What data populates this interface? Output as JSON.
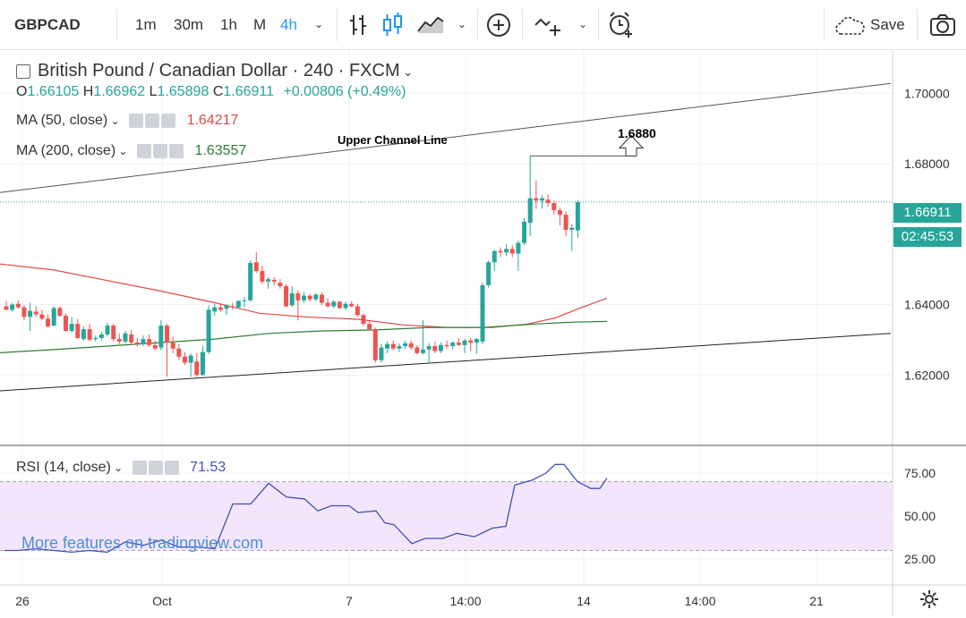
{
  "toolbar": {
    "symbol": "GBPCAD",
    "intervals": [
      "1m",
      "30m",
      "1h",
      "M",
      "4h"
    ],
    "active_interval": "4h",
    "save_label": "Save"
  },
  "legend": {
    "title": "British Pound / Canadian Dollar · 240 · FXCM",
    "ohlc": {
      "o_label": "O",
      "o": "1.66105",
      "h_label": "H",
      "h": "1.66962",
      "l_label": "L",
      "l": "1.65898",
      "c_label": "C",
      "c": "1.66911",
      "change": "+0.00806 (+0.49%)"
    },
    "ma50": {
      "label": "MA (50, close)",
      "value": "1.64217",
      "color": "#e04848"
    },
    "ma200": {
      "label": "MA (200, close)",
      "value": "1.63557",
      "color": "#2e7d32"
    },
    "rsi": {
      "label": "RSI (14, close)",
      "value": "71.53",
      "color": "#3f51b5"
    }
  },
  "annotations": {
    "channel_label": "Upper Channel Line",
    "target_label": "1.6880"
  },
  "price_tags": {
    "last_price": "1.66911",
    "countdown": "02:45:53"
  },
  "watermark": "More features on tradingview.com",
  "colors": {
    "up": "#26a69a",
    "down": "#ef5350",
    "accent": "#2196f3"
  },
  "chart_data": {
    "type": "candlestick",
    "symbol": "GBPCAD",
    "interval": "240",
    "y_ticks": [
      "1.70000",
      "1.68000",
      "1.64000",
      "1.62000"
    ],
    "ylim": [
      1.6,
      1.712
    ],
    "x_ticks": [
      "26",
      "Oct",
      "7",
      "14:00",
      "14",
      "14:00",
      "21"
    ],
    "candles": [
      [
        1.6395,
        1.641,
        1.6385,
        1.6385
      ],
      [
        1.6385,
        1.6405,
        1.638,
        1.64
      ],
      [
        1.6402,
        1.6412,
        1.6388,
        1.6392
      ],
      [
        1.6392,
        1.6398,
        1.6355,
        1.6365
      ],
      [
        1.6365,
        1.6405,
        1.6325,
        1.6382
      ],
      [
        1.638,
        1.6395,
        1.6365,
        1.6372
      ],
      [
        1.6372,
        1.6385,
        1.6355,
        1.636
      ],
      [
        1.636,
        1.6372,
        1.6335,
        1.6338
      ],
      [
        1.634,
        1.6395,
        1.6338,
        1.639
      ],
      [
        1.639,
        1.6395,
        1.6365,
        1.6368
      ],
      [
        1.6368,
        1.6375,
        1.6322,
        1.6325
      ],
      [
        1.6325,
        1.6365,
        1.632,
        1.6345
      ],
      [
        1.6345,
        1.6358,
        1.6302,
        1.6305
      ],
      [
        1.6302,
        1.6338,
        1.6298,
        1.633
      ],
      [
        1.633,
        1.6345,
        1.6296,
        1.63
      ],
      [
        1.6302,
        1.6312,
        1.6295,
        1.6305
      ],
      [
        1.6305,
        1.6322,
        1.6298,
        1.6315
      ],
      [
        1.6315,
        1.6348,
        1.631,
        1.634
      ],
      [
        1.634,
        1.6345,
        1.6295,
        1.6302
      ],
      [
        1.6302,
        1.6318,
        1.6288,
        1.6295
      ],
      [
        1.6295,
        1.6325,
        1.629,
        1.6318
      ],
      [
        1.6315,
        1.6328,
        1.6285,
        1.6292
      ],
      [
        1.6292,
        1.6305,
        1.628,
        1.6288
      ],
      [
        1.6288,
        1.6312,
        1.6282,
        1.6302
      ],
      [
        1.6302,
        1.6315,
        1.628,
        1.6285
      ],
      [
        1.6285,
        1.6298,
        1.627,
        1.6275
      ],
      [
        1.6278,
        1.6355,
        1.627,
        1.634
      ],
      [
        1.634,
        1.6345,
        1.6195,
        1.6292
      ],
      [
        1.6292,
        1.6308,
        1.6262,
        1.6275
      ],
      [
        1.6275,
        1.6288,
        1.6242,
        1.6252
      ],
      [
        1.6252,
        1.6265,
        1.6228,
        1.6235
      ],
      [
        1.6235,
        1.6262,
        1.6195,
        1.6255
      ],
      [
        1.6238,
        1.6262,
        1.6195,
        1.62
      ],
      [
        1.62,
        1.6282,
        1.6198,
        1.6265
      ],
      [
        1.6265,
        1.6398,
        1.626,
        1.6385
      ],
      [
        1.638,
        1.6402,
        1.6368,
        1.6392
      ],
      [
        1.6392,
        1.64,
        1.6378,
        1.6385
      ],
      [
        1.6388,
        1.64,
        1.637,
        1.6398
      ],
      [
        1.6395,
        1.6405,
        1.6385,
        1.6392
      ],
      [
        1.6392,
        1.6412,
        1.6388,
        1.641
      ],
      [
        1.641,
        1.6422,
        1.6392,
        1.6412
      ],
      [
        1.6412,
        1.6525,
        1.6408,
        1.6518
      ],
      [
        1.652,
        1.6548,
        1.649,
        1.6495
      ],
      [
        1.6495,
        1.651,
        1.6458,
        1.6465
      ],
      [
        1.6465,
        1.6478,
        1.6445,
        1.6472
      ],
      [
        1.647,
        1.6478,
        1.6455,
        1.6465
      ],
      [
        1.6462,
        1.6472,
        1.6445,
        1.6452
      ],
      [
        1.6452,
        1.6458,
        1.6392,
        1.6395
      ],
      [
        1.6398,
        1.6452,
        1.6392,
        1.6432
      ],
      [
        1.6432,
        1.644,
        1.6355,
        1.6412
      ],
      [
        1.6412,
        1.6435,
        1.6405,
        1.6425
      ],
      [
        1.6425,
        1.643,
        1.6408,
        1.6415
      ],
      [
        1.6415,
        1.6432,
        1.6408,
        1.6428
      ],
      [
        1.6428,
        1.6435,
        1.6398,
        1.6405
      ],
      [
        1.6405,
        1.6418,
        1.6392,
        1.6395
      ],
      [
        1.6395,
        1.6412,
        1.639,
        1.6408
      ],
      [
        1.6408,
        1.641,
        1.6388,
        1.639
      ],
      [
        1.639,
        1.6408,
        1.6385,
        1.6402
      ],
      [
        1.6402,
        1.641,
        1.6392,
        1.6395
      ],
      [
        1.6395,
        1.6402,
        1.6365,
        1.637
      ],
      [
        1.637,
        1.6375,
        1.634,
        1.6345
      ],
      [
        1.6345,
        1.6352,
        1.6325,
        1.633
      ],
      [
        1.633,
        1.6335,
        1.6235,
        1.6242
      ],
      [
        1.6242,
        1.6288,
        1.6235,
        1.6278
      ],
      [
        1.6275,
        1.6295,
        1.6262,
        1.6288
      ],
      [
        1.6288,
        1.6298,
        1.627,
        1.6275
      ],
      [
        1.6275,
        1.629,
        1.6265,
        1.6282
      ],
      [
        1.6282,
        1.6298,
        1.6275,
        1.629
      ],
      [
        1.629,
        1.6298,
        1.6272,
        1.6278
      ],
      [
        1.6278,
        1.6285,
        1.6258,
        1.6262
      ],
      [
        1.6262,
        1.6355,
        1.6258,
        1.6272
      ],
      [
        1.6272,
        1.629,
        1.6232,
        1.6282
      ],
      [
        1.6282,
        1.6295,
        1.6262,
        1.6268
      ],
      [
        1.6268,
        1.6292,
        1.6262,
        1.6285
      ],
      [
        1.6285,
        1.6298,
        1.6275,
        1.6282
      ],
      [
        1.6282,
        1.6295,
        1.6272,
        1.6292
      ],
      [
        1.6292,
        1.6305,
        1.6282,
        1.6285
      ],
      [
        1.6285,
        1.6302,
        1.6262,
        1.6298
      ],
      [
        1.6298,
        1.6305,
        1.6268,
        1.6292
      ],
      [
        1.6292,
        1.6305,
        1.626,
        1.6302
      ],
      [
        1.6295,
        1.6462,
        1.6288,
        1.6455
      ],
      [
        1.6455,
        1.6525,
        1.6448,
        1.652
      ],
      [
        1.652,
        1.6555,
        1.6495,
        1.6552
      ],
      [
        1.6552,
        1.6562,
        1.6535,
        1.6548
      ],
      [
        1.6548,
        1.6572,
        1.6538,
        1.6558
      ],
      [
        1.6558,
        1.6568,
        1.6535,
        1.6545
      ],
      [
        1.6545,
        1.6582,
        1.6495,
        1.6575
      ],
      [
        1.6575,
        1.6645,
        1.6568,
        1.6635
      ],
      [
        1.6632,
        1.6822,
        1.6595,
        1.6702
      ],
      [
        1.6702,
        1.6752,
        1.6672,
        1.6695
      ],
      [
        1.6695,
        1.671,
        1.6672,
        1.6702
      ],
      [
        1.6698,
        1.6712,
        1.6678,
        1.6688
      ],
      [
        1.6688,
        1.6695,
        1.6655,
        1.6668
      ],
      [
        1.6668,
        1.6675,
        1.6625,
        1.6655
      ],
      [
        1.6655,
        1.6665,
        1.6595,
        1.6612
      ],
      [
        1.6612,
        1.6628,
        1.6552,
        1.6618
      ],
      [
        1.66105,
        1.66962,
        1.65898,
        1.66911
      ]
    ],
    "ma50": [
      [
        0,
        1.6515
      ],
      [
        60,
        1.6498
      ],
      [
        120,
        1.6468
      ],
      [
        180,
        1.6438
      ],
      [
        240,
        1.6405
      ],
      [
        290,
        1.6375
      ],
      [
        340,
        1.6365
      ],
      [
        400,
        1.6358
      ],
      [
        450,
        1.6342
      ],
      [
        500,
        1.6335
      ],
      [
        550,
        1.6335
      ],
      [
        590,
        1.6345
      ],
      [
        620,
        1.6362
      ],
      [
        650,
        1.6392
      ],
      [
        678,
        1.6418
      ]
    ],
    "ma200": [
      [
        0,
        1.6263
      ],
      [
        60,
        1.6272
      ],
      [
        120,
        1.6282
      ],
      [
        180,
        1.6292
      ],
      [
        240,
        1.6302
      ],
      [
        300,
        1.6318
      ],
      [
        360,
        1.6325
      ],
      [
        420,
        1.6328
      ],
      [
        480,
        1.6335
      ],
      [
        540,
        1.6335
      ],
      [
        600,
        1.6345
      ],
      [
        640,
        1.635
      ],
      [
        678,
        1.6352
      ]
    ],
    "upper_channel": [
      [
        0,
        1.6718
      ],
      [
        995,
        1.7028
      ]
    ],
    "lower_channel": [
      [
        0,
        1.6155
      ],
      [
        995,
        1.6318
      ]
    ],
    "target_level": 1.688,
    "rsi_ylim": [
      10,
      90
    ],
    "rsi_ticks": [
      "75.00",
      "50.00",
      "25.00"
    ],
    "rsi_band": [
      30,
      70
    ],
    "rsi": [
      [
        5,
        30
      ],
      [
        20,
        30
      ],
      [
        40,
        31
      ],
      [
        60,
        30
      ],
      [
        80,
        29
      ],
      [
        100,
        30
      ],
      [
        120,
        29
      ],
      [
        140,
        35
      ],
      [
        160,
        33
      ],
      [
        180,
        36
      ],
      [
        200,
        32
      ],
      [
        220,
        32
      ],
      [
        240,
        31
      ],
      [
        260,
        57
      ],
      [
        280,
        57
      ],
      [
        300,
        69
      ],
      [
        320,
        61
      ],
      [
        340,
        60
      ],
      [
        355,
        53
      ],
      [
        370,
        56
      ],
      [
        390,
        56
      ],
      [
        400,
        52
      ],
      [
        420,
        53
      ],
      [
        430,
        46
      ],
      [
        440,
        45
      ],
      [
        460,
        34
      ],
      [
        475,
        37
      ],
      [
        495,
        37
      ],
      [
        510,
        40
      ],
      [
        530,
        38
      ],
      [
        550,
        43
      ],
      [
        565,
        44
      ],
      [
        575,
        68
      ],
      [
        595,
        71
      ],
      [
        610,
        75
      ],
      [
        620,
        80
      ],
      [
        630,
        80
      ],
      [
        645,
        70
      ],
      [
        660,
        66
      ],
      [
        670,
        66
      ],
      [
        678,
        72
      ]
    ]
  }
}
